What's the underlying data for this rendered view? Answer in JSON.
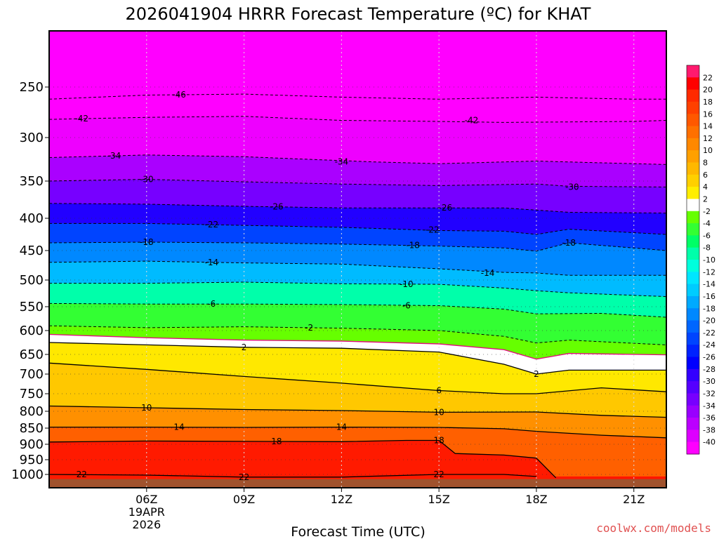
{
  "chart_data": {
    "type": "heatmap",
    "title": "2026041904 HRRR Forecast Temperature (ºC) for KHAT",
    "xlabel": "Forecast Time (UTC)",
    "ylabel": "",
    "credit": "coolwx.com/models",
    "x_range_hours": [
      3,
      22
    ],
    "y_range_hpa": [
      1020,
      200
    ],
    "x_ticks": [
      {
        "hour": 6,
        "label": "06Z",
        "sub1": "19APR",
        "sub2": "2026"
      },
      {
        "hour": 9,
        "label": "09Z"
      },
      {
        "hour": 12,
        "label": "12Z"
      },
      {
        "hour": 15,
        "label": "15Z"
      },
      {
        "hour": 18,
        "label": "18Z"
      },
      {
        "hour": 21,
        "label": "21Z"
      }
    ],
    "y_ticks": [
      250,
      300,
      350,
      400,
      450,
      500,
      550,
      600,
      650,
      700,
      750,
      800,
      850,
      900,
      950,
      1000
    ],
    "ground_pressure_hpa": 1007,
    "colorbar": {
      "labels": [
        "22",
        "20",
        "18",
        "16",
        "14",
        "12",
        "10",
        "8",
        "6",
        "4",
        "2",
        "-2",
        "-4",
        "-6",
        "-8",
        "-10",
        "-12",
        "-14",
        "-16",
        "-18",
        "-20",
        "-22",
        "-24",
        "-26",
        "-28",
        "-30",
        "-32",
        "-34",
        "-36",
        "-38",
        "-40"
      ],
      "colors": [
        "#ff1a6e",
        "#ff0000",
        "#ff2a00",
        "#ff4000",
        "#ff5800",
        "#ff7000",
        "#ff8800",
        "#ffa000",
        "#ffb800",
        "#ffd000",
        "#ffee00",
        "#ffffff",
        "#66ff00",
        "#33ff33",
        "#00ff66",
        "#00ffaa",
        "#00ffdd",
        "#00e6ff",
        "#00ccff",
        "#00aaff",
        "#0088ff",
        "#0066ff",
        "#0044ff",
        "#0022ff",
        "#0000ff",
        "#3300ff",
        "#5500ff",
        "#7700ff",
        "#9900ff",
        "#bb00ff",
        "#dd00ff",
        "#ff00ff"
      ]
    },
    "contours": [
      {
        "level": -46,
        "label": "-46",
        "style": "dashed",
        "label_hour": 7.0,
        "points": [
          [
            3,
            262
          ],
          [
            6,
            258
          ],
          [
            9,
            257
          ],
          [
            12,
            260
          ],
          [
            15,
            262
          ],
          [
            18,
            260
          ],
          [
            21,
            262
          ],
          [
            22,
            262
          ]
        ]
      },
      {
        "level": -42,
        "label": "-42",
        "style": "dashed",
        "label_hour": 4.0,
        "points": [
          [
            3,
            282
          ],
          [
            6,
            280
          ],
          [
            9,
            279
          ],
          [
            12,
            283
          ],
          [
            15,
            284
          ],
          [
            17,
            285
          ],
          [
            21,
            284
          ],
          [
            22,
            283
          ]
        ]
      },
      {
        "level": -34,
        "label": "-34",
        "style": "dashed",
        "label_hour": 5.0,
        "points": [
          [
            3,
            323
          ],
          [
            6,
            320
          ],
          [
            9,
            322
          ],
          [
            13,
            328
          ],
          [
            15,
            330
          ],
          [
            18,
            327
          ],
          [
            21,
            330
          ],
          [
            22,
            331
          ]
        ]
      },
      {
        "level": -30,
        "label": "-30",
        "style": "dashed",
        "label_hour": 6.0,
        "points": [
          [
            3,
            350
          ],
          [
            6,
            348
          ],
          [
            9,
            351
          ],
          [
            12,
            354
          ],
          [
            15,
            356
          ],
          [
            18,
            354
          ],
          [
            19,
            357
          ],
          [
            22,
            358
          ]
        ]
      },
      {
        "level": -26,
        "label": "-26",
        "style": "dashed",
        "label_hour": 10.0,
        "points": [
          [
            3,
            380
          ],
          [
            6,
            381
          ],
          [
            9,
            384
          ],
          [
            12,
            386
          ],
          [
            15,
            386
          ],
          [
            17,
            386
          ],
          [
            19,
            392
          ],
          [
            22,
            393
          ]
        ]
      },
      {
        "level": -22,
        "label": "-22",
        "style": "dashed",
        "label_hour": 8.0,
        "points": [
          [
            3,
            408
          ],
          [
            6,
            408
          ],
          [
            9,
            411
          ],
          [
            12,
            414
          ],
          [
            15,
            419
          ],
          [
            17,
            420
          ],
          [
            18,
            425
          ],
          [
            19,
            417
          ],
          [
            22,
            425
          ]
        ]
      },
      {
        "level": -18,
        "label": "-18",
        "style": "dashed",
        "label_hour": 6.0,
        "points": [
          [
            3,
            438
          ],
          [
            6,
            437
          ],
          [
            9,
            438
          ],
          [
            12,
            440
          ],
          [
            15,
            443
          ],
          [
            17,
            446
          ],
          [
            18,
            451
          ],
          [
            19,
            438
          ],
          [
            22,
            450
          ]
        ]
      },
      {
        "level": -14,
        "label": "-14",
        "style": "dashed",
        "label_hour": 8.0,
        "points": [
          [
            3,
            470
          ],
          [
            6,
            468
          ],
          [
            9,
            471
          ],
          [
            12,
            473
          ],
          [
            15,
            481
          ],
          [
            17,
            487
          ],
          [
            18,
            488
          ],
          [
            19,
            492
          ],
          [
            22,
            492
          ]
        ]
      },
      {
        "level": -10,
        "label": "-10",
        "style": "dashed",
        "label_hour": 14.0,
        "points": [
          [
            3,
            506
          ],
          [
            6,
            506
          ],
          [
            9,
            504
          ],
          [
            12,
            507
          ],
          [
            15,
            508
          ],
          [
            17,
            515
          ],
          [
            18,
            520
          ],
          [
            19,
            524
          ],
          [
            22,
            531
          ]
        ]
      },
      {
        "level": -6,
        "label": "-6",
        "style": "dashed",
        "label_hour": 8.0,
        "points": [
          [
            3,
            544
          ],
          [
            6,
            545
          ],
          [
            9,
            545
          ],
          [
            12,
            546
          ],
          [
            15,
            548
          ],
          [
            17,
            555
          ],
          [
            18,
            565
          ],
          [
            20,
            564
          ],
          [
            22,
            572
          ]
        ]
      },
      {
        "level": -2,
        "label": "-2",
        "style": "dashed",
        "label_hour": 11.0,
        "points": [
          [
            3,
            590
          ],
          [
            6,
            594
          ],
          [
            9,
            592
          ],
          [
            12,
            595
          ],
          [
            15,
            600
          ],
          [
            17,
            612
          ],
          [
            18,
            626
          ],
          [
            19,
            620
          ],
          [
            22,
            630
          ]
        ]
      },
      {
        "level": 0,
        "label": "",
        "style": "magenta",
        "label_hour": 0,
        "points": [
          [
            3,
            608
          ],
          [
            6,
            615
          ],
          [
            9,
            620
          ],
          [
            12,
            622
          ],
          [
            15,
            628
          ],
          [
            17,
            640
          ],
          [
            18,
            662
          ],
          [
            19,
            648
          ],
          [
            22,
            651
          ]
        ]
      },
      {
        "level": 2,
        "label": "2",
        "style": "solid",
        "label_hour": 9.0,
        "points": [
          [
            3,
            625
          ],
          [
            6,
            630
          ],
          [
            9,
            635
          ],
          [
            12,
            637
          ],
          [
            15,
            645
          ],
          [
            17,
            675
          ],
          [
            18,
            700
          ],
          [
            19,
            690
          ],
          [
            22,
            690
          ]
        ]
      },
      {
        "level": 6,
        "label": "6",
        "style": "solid",
        "label_hour": 15.0,
        "points": [
          [
            3,
            672
          ],
          [
            6,
            688
          ],
          [
            9,
            706
          ],
          [
            12,
            723
          ],
          [
            15,
            742
          ],
          [
            17,
            750
          ],
          [
            18,
            750
          ],
          [
            20,
            735
          ],
          [
            22,
            745
          ]
        ]
      },
      {
        "level": 10,
        "label": "10",
        "style": "solid",
        "label_hour": 15.0,
        "points": [
          [
            3,
            785
          ],
          [
            6,
            790
          ],
          [
            9,
            795
          ],
          [
            12,
            798
          ],
          [
            15,
            803
          ],
          [
            18,
            802
          ],
          [
            20,
            812
          ],
          [
            22,
            818
          ]
        ]
      },
      {
        "level": 14,
        "label": "14",
        "style": "solid",
        "label_hour": 7.0,
        "points": [
          [
            3,
            847
          ],
          [
            6,
            847
          ],
          [
            9,
            848
          ],
          [
            12,
            847
          ],
          [
            15,
            848
          ],
          [
            17,
            852
          ],
          [
            18,
            860
          ],
          [
            20,
            872
          ],
          [
            22,
            880
          ]
        ]
      },
      {
        "level": 18,
        "label": "18",
        "style": "solid",
        "label_hour": 10.0,
        "points": [
          [
            3,
            893
          ],
          [
            6,
            890
          ],
          [
            9,
            891
          ],
          [
            12,
            892
          ],
          [
            14,
            888
          ],
          [
            15,
            888
          ],
          [
            15.5,
            930
          ],
          [
            17,
            935
          ],
          [
            18,
            945
          ],
          [
            18.6,
            1005
          ]
        ]
      },
      {
        "level": 22,
        "label": "22",
        "style": "solid",
        "label_hour": 15.0,
        "points": [
          [
            3,
            1000
          ],
          [
            6,
            1001
          ],
          [
            9,
            1004
          ],
          [
            12,
            1004
          ],
          [
            15,
            1000
          ],
          [
            17,
            1000
          ],
          [
            18,
            1003
          ]
        ]
      }
    ],
    "contour_labels_extra": [
      {
        "label": "-42",
        "hour": 16.0,
        "hpa": 283
      },
      {
        "label": "-34",
        "hour": 12.0,
        "hpa": 328
      },
      {
        "label": "-30",
        "hour": 19.1,
        "hpa": 358
      },
      {
        "label": "-26",
        "hour": 15.2,
        "hpa": 386
      },
      {
        "label": "-22",
        "hour": 14.8,
        "hpa": 418
      },
      {
        "label": "-18",
        "hour": 14.2,
        "hpa": 442
      },
      {
        "label": "-18",
        "hour": 19.0,
        "hpa": 438
      },
      {
        "label": "-14",
        "hour": 16.5,
        "hpa": 488
      },
      {
        "label": "-6",
        "hour": 14.0,
        "hpa": 548
      },
      {
        "label": "2",
        "hour": 18.0,
        "hpa": 700
      },
      {
        "label": "10",
        "hour": 6.0,
        "hpa": 790
      },
      {
        "label": "14",
        "hour": 12.0,
        "hpa": 847
      },
      {
        "label": "18",
        "hour": 15.0,
        "hpa": 888
      },
      {
        "label": "22",
        "hour": 4.0,
        "hpa": 1000
      },
      {
        "label": "22",
        "hour": 9.0,
        "hpa": 1004
      }
    ]
  }
}
